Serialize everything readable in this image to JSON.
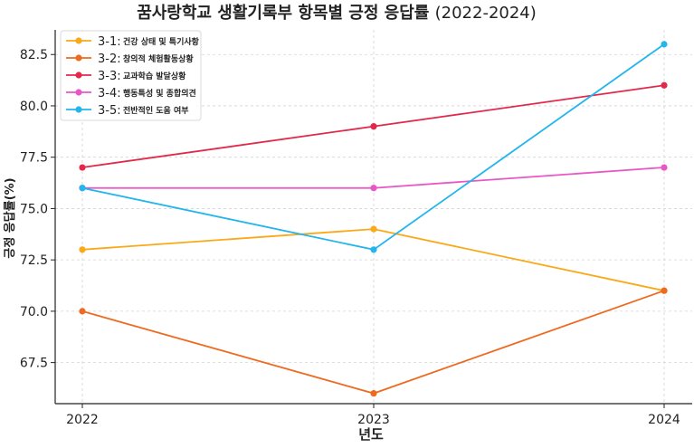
{
  "chart_data": {
    "type": "line",
    "title": "꿈사랑학교 생활기록부 항목별 긍정 응답률",
    "title_suffix": "(2022-2024)",
    "xlabel": "년도",
    "ylabel": "긍정 응답률(%)",
    "x": [
      "2022",
      "2023",
      "2024"
    ],
    "ylim": [
      65.5,
      83.7
    ],
    "yticks": [
      "67.5",
      "70.0",
      "72.5",
      "75.0",
      "77.5",
      "80.0",
      "82.5"
    ],
    "grid": true,
    "legend_position": "top-left",
    "series": [
      {
        "code": "3-1:",
        "label": "건강 상태 및 특기사항",
        "color": "#FAA918",
        "values": [
          73,
          74,
          71
        ]
      },
      {
        "code": "3-2:",
        "label": "창의적 체험활동상황",
        "color": "#EE6A1E",
        "values": [
          70,
          66,
          71
        ]
      },
      {
        "code": "3-3:",
        "label": "교과학습 발달상황",
        "color": "#E2294B",
        "values": [
          77,
          79,
          81
        ]
      },
      {
        "code": "3-4:",
        "label": "행동특성 및 종합의견",
        "color": "#E758C6",
        "values": [
          76,
          76,
          77
        ]
      },
      {
        "code": "3-5:",
        "label": "전반적인 도움 여부",
        "color": "#22B5EE",
        "values": [
          76,
          73,
          83
        ]
      }
    ]
  }
}
